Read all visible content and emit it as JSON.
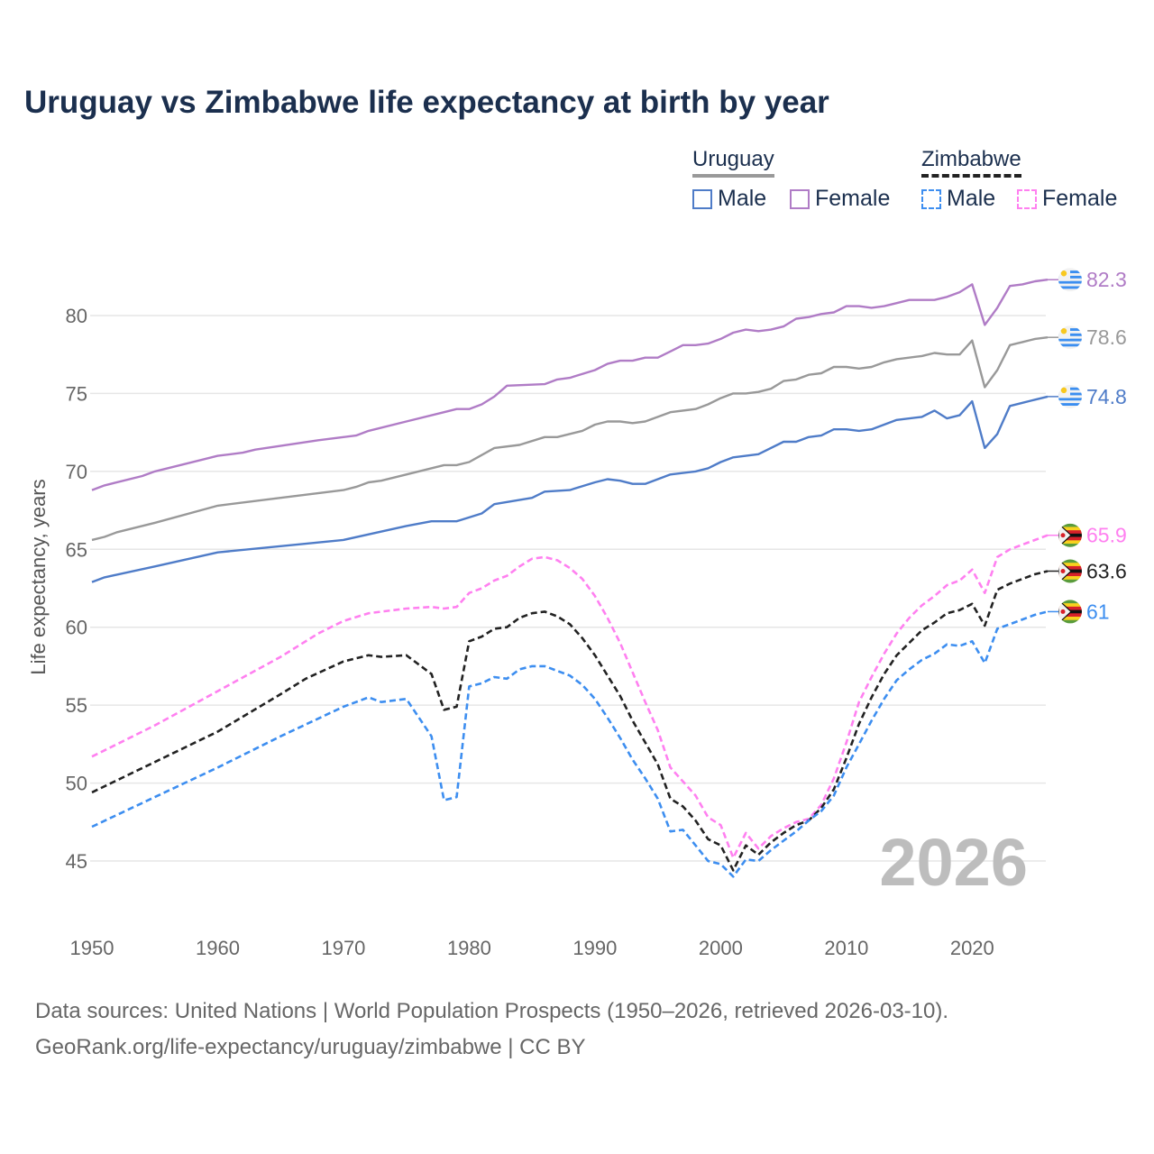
{
  "chart_data": {
    "type": "line",
    "title": "Uruguay vs Zimbabwe life expectancy at birth by year",
    "xlabel": "",
    "ylabel": "Life expectancy, years",
    "xlim": [
      1950,
      2026
    ],
    "ylim": [
      45,
      80
    ],
    "xticks": [
      "1950",
      "1960",
      "1970",
      "1980",
      "1990",
      "2000",
      "2010",
      "2020"
    ],
    "yticks": [
      "45",
      "50",
      "55",
      "60",
      "65",
      "70",
      "75",
      "80"
    ],
    "year_label": "2026",
    "legend": {
      "groups": [
        {
          "country": "Uruguay",
          "items": [
            "Male",
            "Female"
          ]
        },
        {
          "country": "Zimbabwe",
          "items": [
            "Male",
            "Female"
          ]
        }
      ],
      "placement": "top-right"
    },
    "series": [
      {
        "name": "Uruguay Female",
        "country": "Uruguay",
        "color": "#b07cc6",
        "dashed": false,
        "end_label": "82.3",
        "x": [
          1950,
          1951,
          1954,
          1955,
          1960,
          1962,
          1963,
          1968,
          1970,
          1971,
          1972,
          1975,
          1978,
          1979,
          1980,
          1981,
          1982,
          1983,
          1986,
          1987,
          1988,
          1990,
          1991,
          1992,
          1993,
          1994,
          1995,
          1996,
          1997,
          1998,
          1999,
          2000,
          2001,
          2002,
          2003,
          2004,
          2005,
          2006,
          2007,
          2008,
          2009,
          2010,
          2011,
          2012,
          2013,
          2014,
          2015,
          2016,
          2017,
          2018,
          2019,
          2020,
          2021,
          2022,
          2023,
          2024,
          2025,
          2026
        ],
        "y": [
          68.8,
          69.1,
          69.7,
          70.0,
          71.0,
          71.2,
          71.4,
          72.0,
          72.2,
          72.3,
          72.6,
          73.2,
          73.8,
          74.0,
          74.0,
          74.3,
          74.8,
          75.5,
          75.6,
          75.9,
          76.0,
          76.5,
          76.9,
          77.1,
          77.1,
          77.3,
          77.3,
          77.7,
          78.1,
          78.1,
          78.2,
          78.5,
          78.9,
          79.1,
          79.0,
          79.1,
          79.3,
          79.8,
          79.9,
          80.1,
          80.2,
          80.6,
          80.6,
          80.5,
          80.6,
          80.8,
          81.0,
          81.0,
          81.0,
          81.2,
          81.5,
          82.0,
          79.4,
          80.5,
          81.9,
          82.0,
          82.2,
          82.3
        ]
      },
      {
        "name": "Uruguay Total",
        "country": "Uruguay",
        "color": "#999999",
        "dashed": false,
        "end_label": "78.6",
        "x": [
          1950,
          1951,
          1952,
          1955,
          1960,
          1965,
          1970,
          1971,
          1972,
          1973,
          1975,
          1978,
          1979,
          1980,
          1982,
          1984,
          1986,
          1987,
          1989,
          1990,
          1991,
          1992,
          1993,
          1994,
          1996,
          1998,
          1999,
          2000,
          2001,
          2002,
          2003,
          2004,
          2005,
          2006,
          2007,
          2008,
          2009,
          2010,
          2011,
          2012,
          2013,
          2014,
          2016,
          2017,
          2018,
          2019,
          2020,
          2021,
          2022,
          2023,
          2024,
          2025,
          2026
        ],
        "y": [
          65.6,
          65.8,
          66.1,
          66.7,
          67.8,
          68.3,
          68.8,
          69.0,
          69.3,
          69.4,
          69.8,
          70.4,
          70.4,
          70.6,
          71.5,
          71.7,
          72.2,
          72.2,
          72.6,
          73.0,
          73.2,
          73.2,
          73.1,
          73.2,
          73.8,
          74.0,
          74.3,
          74.7,
          75.0,
          75.0,
          75.1,
          75.3,
          75.8,
          75.9,
          76.2,
          76.3,
          76.7,
          76.7,
          76.6,
          76.7,
          77.0,
          77.2,
          77.4,
          77.6,
          77.5,
          77.5,
          78.4,
          75.4,
          76.5,
          78.1,
          78.3,
          78.5,
          78.6
        ]
      },
      {
        "name": "Uruguay Male",
        "country": "Uruguay",
        "color": "#4f7cc8",
        "dashed": false,
        "end_label": "74.8",
        "x": [
          1950,
          1951,
          1955,
          1960,
          1965,
          1970,
          1975,
          1977,
          1979,
          1981,
          1982,
          1985,
          1986,
          1988,
          1990,
          1991,
          1992,
          1993,
          1994,
          1996,
          1998,
          1999,
          2000,
          2001,
          2003,
          2005,
          2006,
          2007,
          2008,
          2009,
          2010,
          2011,
          2012,
          2014,
          2016,
          2017,
          2018,
          2019,
          2020,
          2021,
          2022,
          2023,
          2024,
          2025,
          2026
        ],
        "y": [
          62.9,
          63.2,
          63.9,
          64.8,
          65.2,
          65.6,
          66.5,
          66.8,
          66.8,
          67.3,
          67.9,
          68.3,
          68.7,
          68.8,
          69.3,
          69.5,
          69.4,
          69.2,
          69.2,
          69.8,
          70.0,
          70.2,
          70.6,
          70.9,
          71.1,
          71.9,
          71.9,
          72.2,
          72.3,
          72.7,
          72.7,
          72.6,
          72.7,
          73.3,
          73.5,
          73.9,
          73.4,
          73.6,
          74.5,
          71.5,
          72.4,
          74.2,
          74.4,
          74.6,
          74.8
        ]
      },
      {
        "name": "Zimbabwe Female",
        "country": "Zimbabwe",
        "color": "#ff80f0",
        "dashed": true,
        "end_label": "65.9",
        "x": [
          1950,
          1955,
          1960,
          1965,
          1968,
          1970,
          1972,
          1975,
          1977,
          1978,
          1979,
          1980,
          1981,
          1982,
          1983,
          1984,
          1985,
          1986,
          1987,
          1988,
          1989,
          1990,
          1991,
          1992,
          1993,
          1994,
          1995,
          1996,
          1997,
          1998,
          1999,
          2000,
          2001,
          2002,
          2003,
          2004,
          2005,
          2006,
          2007,
          2008,
          2009,
          2010,
          2011,
          2012,
          2013,
          2014,
          2015,
          2016,
          2017,
          2018,
          2019,
          2020,
          2021,
          2022,
          2023,
          2024,
          2025,
          2026
        ],
        "y": [
          51.7,
          53.7,
          55.9,
          58.1,
          59.6,
          60.4,
          60.9,
          61.2,
          61.3,
          61.2,
          61.3,
          62.2,
          62.5,
          63.0,
          63.3,
          63.9,
          64.4,
          64.5,
          64.3,
          63.8,
          63.1,
          62.0,
          60.6,
          59.0,
          57.1,
          55.2,
          53.4,
          51.0,
          50.1,
          49.2,
          47.8,
          47.3,
          45.2,
          46.8,
          45.8,
          46.6,
          47.1,
          47.5,
          47.7,
          48.6,
          50.3,
          52.6,
          55.2,
          56.8,
          58.3,
          59.6,
          60.6,
          61.4,
          62.0,
          62.7,
          63.0,
          63.7,
          62.2,
          64.5,
          65.0,
          65.3,
          65.6,
          65.9
        ]
      },
      {
        "name": "Zimbabwe Total",
        "country": "Zimbabwe",
        "color": "#222222",
        "dashed": true,
        "end_label": "63.6",
        "x": [
          1950,
          1960,
          1965,
          1967,
          1970,
          1972,
          1973,
          1975,
          1977,
          1978,
          1979,
          1980,
          1981,
          1982,
          1983,
          1984,
          1985,
          1986,
          1987,
          1988,
          1989,
          1990,
          1991,
          1992,
          1993,
          1994,
          1995,
          1996,
          1997,
          1998,
          1999,
          2000,
          2001,
          2002,
          2003,
          2004,
          2005,
          2006,
          2007,
          2008,
          2009,
          2010,
          2011,
          2012,
          2013,
          2014,
          2015,
          2016,
          2017,
          2018,
          2019,
          2020,
          2021,
          2022,
          2023,
          2024,
          2025,
          2026
        ],
        "y": [
          49.4,
          53.3,
          55.7,
          56.7,
          57.8,
          58.2,
          58.1,
          58.2,
          57.0,
          54.7,
          54.9,
          59.1,
          59.4,
          59.9,
          60.0,
          60.6,
          60.9,
          61.0,
          60.7,
          60.2,
          59.3,
          58.2,
          56.9,
          55.6,
          54.0,
          52.6,
          51.2,
          49.0,
          48.5,
          47.6,
          46.4,
          46.0,
          44.4,
          46.0,
          45.4,
          46.2,
          46.8,
          47.3,
          47.6,
          48.4,
          49.6,
          51.6,
          53.8,
          55.5,
          57.0,
          58.2,
          59.0,
          59.8,
          60.3,
          60.9,
          61.1,
          61.5,
          60.1,
          62.4,
          62.8,
          63.1,
          63.4,
          63.6
        ]
      },
      {
        "name": "Zimbabwe Male",
        "country": "Zimbabwe",
        "color": "#3d8ef0",
        "dashed": true,
        "end_label": "61",
        "x": [
          1950,
          1955,
          1960,
          1965,
          1970,
          1972,
          1973,
          1975,
          1977,
          1978,
          1979,
          1980,
          1981,
          1982,
          1983,
          1984,
          1985,
          1986,
          1987,
          1988,
          1989,
          1990,
          1991,
          1992,
          1993,
          1994,
          1995,
          1996,
          1997,
          1998,
          1999,
          2000,
          2001,
          2002,
          2003,
          2004,
          2005,
          2006,
          2007,
          2008,
          2009,
          2010,
          2011,
          2012,
          2013,
          2014,
          2015,
          2016,
          2017,
          2018,
          2019,
          2020,
          2021,
          2022,
          2023,
          2024,
          2025,
          2026
        ],
        "y": [
          47.2,
          49.1,
          51.0,
          53.0,
          54.9,
          55.5,
          55.2,
          55.4,
          53.0,
          48.9,
          49.1,
          56.2,
          56.4,
          56.8,
          56.7,
          57.3,
          57.5,
          57.5,
          57.2,
          56.9,
          56.3,
          55.4,
          54.2,
          52.9,
          51.5,
          50.3,
          49.0,
          46.9,
          47.0,
          46.0,
          45.0,
          44.8,
          44.0,
          45.1,
          45.0,
          45.7,
          46.3,
          46.9,
          47.6,
          48.2,
          49.2,
          51.0,
          52.5,
          54.0,
          55.4,
          56.6,
          57.3,
          57.9,
          58.3,
          58.9,
          58.8,
          59.1,
          57.7,
          59.9,
          60.2,
          60.5,
          60.8,
          61.0
        ]
      }
    ]
  },
  "colors": {
    "uruguay_line": "#999999",
    "zimbabwe_line": "#222222"
  },
  "footer": {
    "line1": "Data sources: United Nations | World Population Prospects (1950–2026, retrieved 2026-03-10).",
    "line2": "GeoRank.org/life-expectancy/uruguay/zimbabwe | CC BY"
  }
}
